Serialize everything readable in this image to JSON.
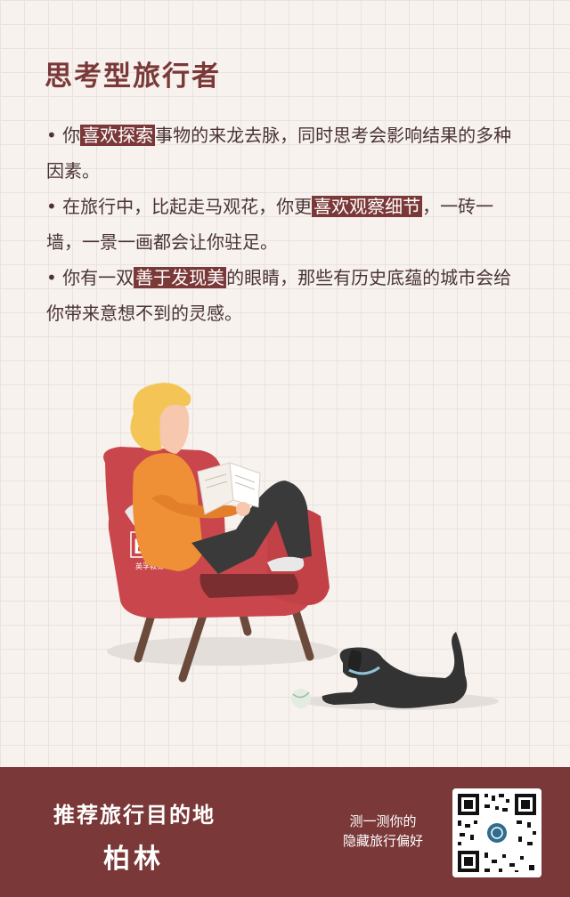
{
  "title": "思考型旅行者",
  "bullets": [
    {
      "pre": "你",
      "hl": "喜欢探索",
      "post": "事物的来龙去脉，同时思考会影响结果的多种因素。"
    },
    {
      "pre": "在旅行中，比起走马观花，你更",
      "hl": "喜欢观察细节",
      "post": "，一砖一墙，一景一画都会让你驻足。"
    },
    {
      "pre": "你有一双",
      "hl": "善于发现美",
      "post": "的眼睛，那些有历史底蕴的城市会给你带来意想不到的灵感。"
    }
  ],
  "bullet_mark": "•",
  "illustration": {
    "chair_logo": "EF",
    "chair_logo_sub": "英孚教育"
  },
  "footer": {
    "heading": "推荐旅行目的地",
    "city": "柏林",
    "test_line1": "测一测你的",
    "test_line2": "隐藏旅行偏好"
  },
  "colors": {
    "brand": "#7b3838",
    "chair": "#c9474c",
    "shirt": "#ef9036",
    "hair": "#f4c556",
    "dog": "#333333",
    "background": "#f7f2ee"
  }
}
